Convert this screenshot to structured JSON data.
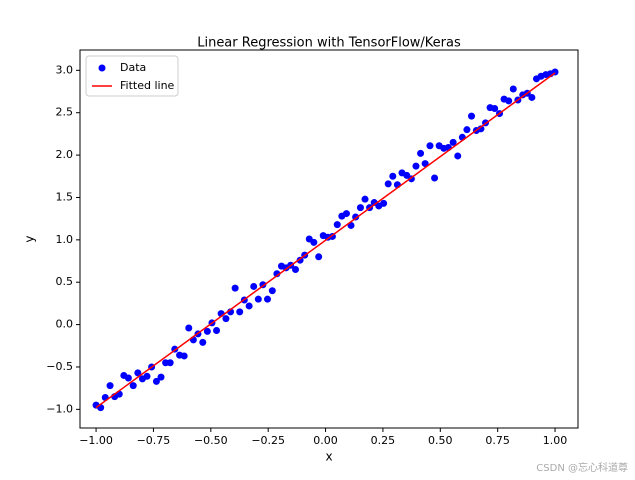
{
  "chart_data": {
    "type": "scatter",
    "title": "Linear Regression with TensorFlow/Keras",
    "xlabel": "x",
    "ylabel": "y",
    "xlim": [
      -1.07,
      1.1
    ],
    "ylim": [
      -1.22,
      3.24
    ],
    "xticks": [
      {
        "value": -1,
        "label": "−1.00"
      },
      {
        "value": -0.75,
        "label": "−0.75"
      },
      {
        "value": -0.5,
        "label": "−0.50"
      },
      {
        "value": -0.25,
        "label": "−0.25"
      },
      {
        "value": 0,
        "label": "0.00"
      },
      {
        "value": 0.25,
        "label": "0.25"
      },
      {
        "value": 0.5,
        "label": "0.50"
      },
      {
        "value": 0.75,
        "label": "0.75"
      },
      {
        "value": 1,
        "label": "1.00"
      }
    ],
    "yticks": [
      {
        "value": -1,
        "label": "−1.0"
      },
      {
        "value": -0.5,
        "label": "−0.5"
      },
      {
        "value": 0,
        "label": "0.0"
      },
      {
        "value": 0.5,
        "label": "0.5"
      },
      {
        "value": 1,
        "label": "1.0"
      },
      {
        "value": 1.5,
        "label": "1.5"
      },
      {
        "value": 2,
        "label": "2.0"
      },
      {
        "value": 2.5,
        "label": "2.5"
      },
      {
        "value": 3,
        "label": "3.0"
      }
    ],
    "legend": "upper left",
    "series": [
      {
        "name": "Data",
        "kind": "points",
        "color": "#0000ff",
        "x": [
          -1.0,
          -0.98,
          -0.96,
          -0.939,
          -0.919,
          -0.899,
          -0.879,
          -0.859,
          -0.838,
          -0.818,
          -0.798,
          -0.778,
          -0.758,
          -0.737,
          -0.717,
          -0.697,
          -0.677,
          -0.657,
          -0.636,
          -0.616,
          -0.596,
          -0.576,
          -0.556,
          -0.535,
          -0.515,
          -0.495,
          -0.475,
          -0.455,
          -0.434,
          -0.414,
          -0.394,
          -0.374,
          -0.354,
          -0.333,
          -0.313,
          -0.293,
          -0.273,
          -0.253,
          -0.232,
          -0.212,
          -0.192,
          -0.172,
          -0.152,
          -0.131,
          -0.111,
          -0.091,
          -0.071,
          -0.051,
          -0.03,
          -0.01,
          0.01,
          0.03,
          0.051,
          0.071,
          0.091,
          0.111,
          0.131,
          0.152,
          0.172,
          0.192,
          0.212,
          0.232,
          0.253,
          0.273,
          0.293,
          0.313,
          0.333,
          0.354,
          0.374,
          0.394,
          0.414,
          0.434,
          0.455,
          0.475,
          0.495,
          0.515,
          0.535,
          0.556,
          0.576,
          0.596,
          0.616,
          0.636,
          0.657,
          0.677,
          0.697,
          0.717,
          0.737,
          0.758,
          0.778,
          0.798,
          0.818,
          0.838,
          0.859,
          0.879,
          0.899,
          0.919,
          0.939,
          0.96,
          0.98,
          1.0
        ],
        "values": [
          -0.95,
          -0.98,
          -0.86,
          -0.72,
          -0.85,
          -0.82,
          -0.6,
          -0.63,
          -0.72,
          -0.57,
          -0.64,
          -0.61,
          -0.5,
          -0.67,
          -0.62,
          -0.45,
          -0.45,
          -0.29,
          -0.36,
          -0.37,
          -0.04,
          -0.18,
          -0.11,
          -0.21,
          -0.08,
          0.02,
          -0.07,
          0.13,
          0.07,
          0.15,
          0.43,
          0.15,
          0.29,
          0.22,
          0.45,
          0.3,
          0.47,
          0.3,
          0.4,
          0.6,
          0.69,
          0.67,
          0.7,
          0.65,
          0.76,
          0.82,
          1.01,
          0.97,
          0.8,
          1.05,
          1.03,
          1.04,
          1.18,
          1.28,
          1.31,
          1.17,
          1.27,
          1.38,
          1.48,
          1.38,
          1.44,
          1.4,
          1.43,
          1.66,
          1.75,
          1.65,
          1.79,
          1.76,
          1.72,
          1.87,
          2.02,
          1.9,
          2.11,
          1.73,
          2.11,
          2.08,
          2.09,
          2.15,
          1.99,
          2.21,
          2.3,
          2.46,
          2.29,
          2.31,
          2.38,
          2.56,
          2.55,
          2.49,
          2.66,
          2.64,
          2.78,
          2.65,
          2.71,
          2.73,
          2.68,
          2.9,
          2.93,
          2.95,
          2.96,
          2.98
        ]
      },
      {
        "name": "Fitted line",
        "kind": "line",
        "color": "#ff0000",
        "x": [
          -1.0,
          1.0
        ],
        "values": [
          -0.98,
          2.97
        ]
      }
    ],
    "watermark": "CSDN @忘心科道尊"
  }
}
